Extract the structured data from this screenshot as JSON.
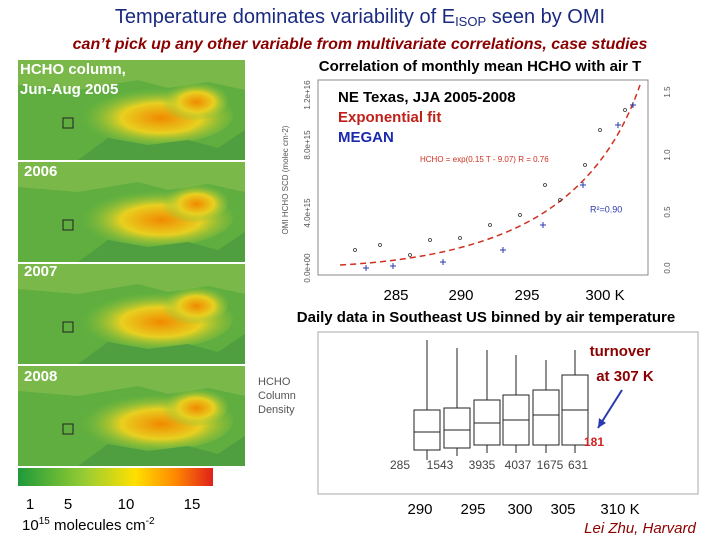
{
  "title": {
    "text": "Temperature dominates variability of E",
    "subscript": "ISOP",
    "tail": " seen by OMI"
  },
  "subtitle": "can’t pick up any other variable from multivariate correlations, case studies",
  "maps": {
    "label_line1": "HCHO column,",
    "label_line2": "Jun-Aug 2005",
    "years": [
      "2006",
      "2007",
      "2008"
    ],
    "colorbar": {
      "ticks": [
        "1",
        "5",
        "10",
        "15"
      ],
      "unit_base": "10",
      "unit_exp": "15",
      "unit_mid": " molecules cm",
      "unit_exp2": "-2"
    }
  },
  "scatter": {
    "title": "Correlation of monthly mean HCHO with air T",
    "legend": [
      "NE Texas,  JJA 2005-2008",
      "Exponential fit",
      "MEGAN"
    ],
    "y_label": "OMI HCHO SCD (molec cm-2)",
    "y_ticks": [
      "0.0e+00",
      "4.0e+15",
      "8.0e+15",
      "1.2e+16"
    ],
    "y2_ticks": [
      "0.0",
      "0.5",
      "1.0",
      "1.5"
    ],
    "fit_label": "HCHO = exp(0.15 T - 9.07)  R = 0.76",
    "r2_label": "R²=0.90",
    "x_ticks": [
      "285",
      "290",
      "295",
      "300 K"
    ],
    "caption": "Daily data in Southeast US binned by air temperature"
  },
  "boxplot": {
    "y_label": [
      "HCHO",
      "Column",
      "Density"
    ],
    "counts": [
      285,
      1543,
      3935,
      4037,
      1675,
      631
    ],
    "extra_count": 181,
    "annotation_line1": "turnover",
    "annotation_line2": "at 307 K",
    "x_ticks": [
      "290",
      "295",
      "300",
      "305",
      "310 K"
    ]
  },
  "credit": "Lei Zhu, Harvard"
}
